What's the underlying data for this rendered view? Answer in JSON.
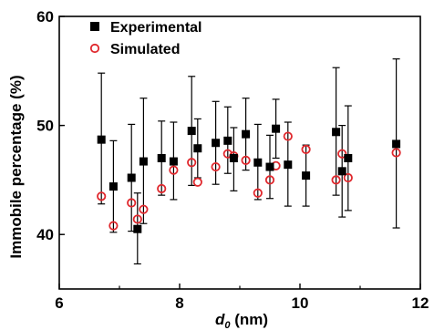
{
  "chart_data": {
    "type": "scatter",
    "xlabel_main": "d",
    "xlabel_sub": "0",
    "xlabel_unit": " (nm)",
    "ylabel": "Immobile percentage (%)",
    "xlim": [
      6,
      12
    ],
    "ylim": [
      35,
      60
    ],
    "xticks": [
      6,
      8,
      10,
      12
    ],
    "yticks": [
      40,
      50,
      60
    ],
    "xtick_labels": [
      "6",
      "8",
      "10",
      "12"
    ],
    "ytick_labels": [
      "40",
      "50",
      "60"
    ],
    "legend": {
      "position": "top-left"
    },
    "series": [
      {
        "name": "Experimental",
        "marker": "filled-square",
        "color": "#000000",
        "points": [
          {
            "x": 6.7,
            "y": 48.7,
            "err_low": 42.8,
            "err_high": 54.8
          },
          {
            "x": 6.9,
            "y": 44.4,
            "err_low": 40.2,
            "err_high": 48.6
          },
          {
            "x": 7.2,
            "y": 45.2,
            "err_low": 40.3,
            "err_high": 50.1
          },
          {
            "x": 7.3,
            "y": 40.5,
            "err_low": 37.3,
            "err_high": 43.8
          },
          {
            "x": 7.4,
            "y": 46.7,
            "err_low": 41.0,
            "err_high": 52.5
          },
          {
            "x": 7.7,
            "y": 47.0,
            "err_low": 43.6,
            "err_high": 50.4
          },
          {
            "x": 7.9,
            "y": 46.7,
            "err_low": 43.2,
            "err_high": 50.3
          },
          {
            "x": 8.2,
            "y": 49.5,
            "err_low": 44.5,
            "err_high": 54.5
          },
          {
            "x": 8.3,
            "y": 47.9,
            "err_low": 45.2,
            "err_high": 50.6
          },
          {
            "x": 8.6,
            "y": 48.4,
            "err_low": 44.6,
            "err_high": 52.2
          },
          {
            "x": 8.8,
            "y": 48.6,
            "err_low": 45.6,
            "err_high": 51.7
          },
          {
            "x": 8.9,
            "y": 47.0,
            "err_low": 44.0,
            "err_high": 49.8
          },
          {
            "x": 9.1,
            "y": 49.2,
            "err_low": 45.9,
            "err_high": 52.5
          },
          {
            "x": 9.3,
            "y": 46.6,
            "err_low": 43.2,
            "err_high": 50.1
          },
          {
            "x": 9.5,
            "y": 46.2,
            "err_low": 43.3,
            "err_high": 49.1
          },
          {
            "x": 9.6,
            "y": 49.7,
            "err_low": 47.0,
            "err_high": 52.4
          },
          {
            "x": 9.8,
            "y": 46.4,
            "err_low": 42.6,
            "err_high": 50.3
          },
          {
            "x": 10.1,
            "y": 45.4,
            "err_low": 42.6,
            "err_high": 48.2
          },
          {
            "x": 10.6,
            "y": 49.4,
            "err_low": 43.6,
            "err_high": 55.3
          },
          {
            "x": 10.7,
            "y": 45.8,
            "err_low": 41.6,
            "err_high": 50.0
          },
          {
            "x": 10.8,
            "y": 47.0,
            "err_low": 42.2,
            "err_high": 51.8
          },
          {
            "x": 11.6,
            "y": 48.3,
            "err_low": 40.6,
            "err_high": 56.1
          }
        ]
      },
      {
        "name": "Simulated",
        "marker": "open-circle",
        "color": "#e0282d",
        "points": [
          {
            "x": 6.7,
            "y": 43.5
          },
          {
            "x": 6.9,
            "y": 40.8
          },
          {
            "x": 7.2,
            "y": 42.9
          },
          {
            "x": 7.3,
            "y": 41.4
          },
          {
            "x": 7.4,
            "y": 42.3
          },
          {
            "x": 7.7,
            "y": 44.2
          },
          {
            "x": 7.9,
            "y": 45.9
          },
          {
            "x": 8.2,
            "y": 46.6
          },
          {
            "x": 8.3,
            "y": 44.8
          },
          {
            "x": 8.6,
            "y": 46.2
          },
          {
            "x": 8.8,
            "y": 47.4
          },
          {
            "x": 8.9,
            "y": 47.2
          },
          {
            "x": 9.1,
            "y": 46.8
          },
          {
            "x": 9.3,
            "y": 43.8
          },
          {
            "x": 9.5,
            "y": 45.0
          },
          {
            "x": 9.6,
            "y": 46.3
          },
          {
            "x": 9.8,
            "y": 49.0
          },
          {
            "x": 10.1,
            "y": 47.8
          },
          {
            "x": 10.6,
            "y": 45.0
          },
          {
            "x": 10.7,
            "y": 47.4
          },
          {
            "x": 10.8,
            "y": 45.2
          },
          {
            "x": 11.6,
            "y": 47.5
          }
        ]
      }
    ]
  }
}
